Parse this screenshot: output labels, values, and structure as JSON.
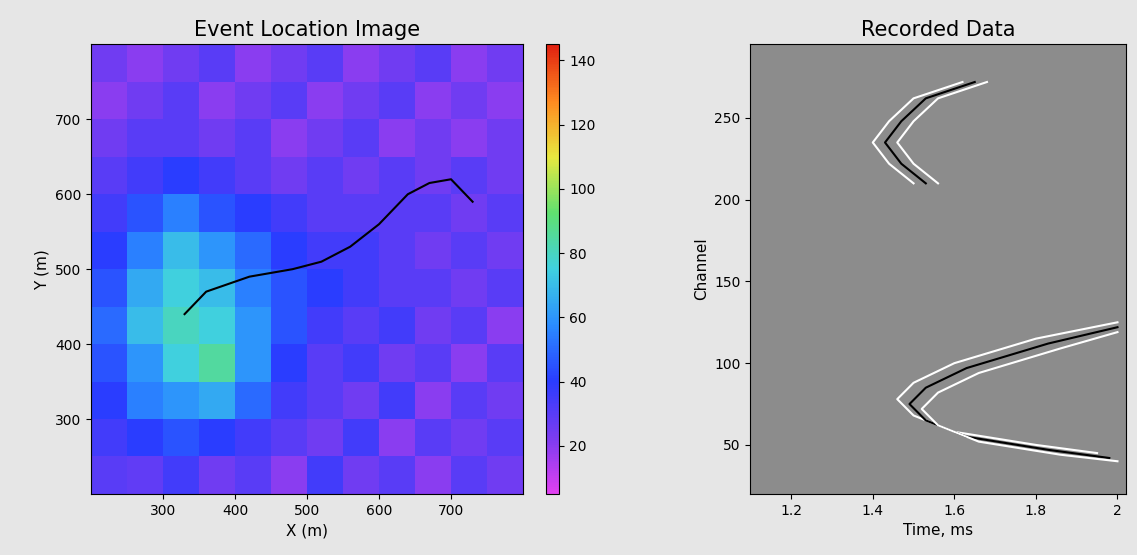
{
  "chart_data": [
    {
      "type": "heatmap",
      "title": "Event Location Image",
      "x_label": "X (m)",
      "y_label": "Y (m)",
      "x_edges": [
        200,
        250,
        300,
        350,
        400,
        450,
        500,
        550,
        600,
        650,
        700,
        750,
        800
      ],
      "y_edges": [
        200,
        250,
        300,
        350,
        400,
        450,
        500,
        550,
        600,
        650,
        700,
        750,
        800
      ],
      "cells": [
        [
          30,
          28,
          35,
          25,
          30,
          20,
          35,
          25,
          30,
          20,
          30,
          25
        ],
        [
          35,
          40,
          45,
          40,
          35,
          30,
          25,
          35,
          20,
          30,
          25,
          30
        ],
        [
          40,
          55,
          60,
          65,
          50,
          35,
          30,
          25,
          35,
          20,
          30,
          25
        ],
        [
          45,
          60,
          75,
          85,
          60,
          40,
          30,
          35,
          25,
          30,
          20,
          30
        ],
        [
          50,
          70,
          80,
          75,
          60,
          45,
          35,
          30,
          35,
          25,
          30,
          20
        ],
        [
          45,
          65,
          75,
          70,
          55,
          45,
          40,
          35,
          30,
          30,
          25,
          30
        ],
        [
          40,
          55,
          70,
          60,
          50,
          40,
          35,
          35,
          30,
          25,
          30,
          25
        ],
        [
          35,
          45,
          55,
          45,
          40,
          35,
          30,
          30,
          30,
          30,
          25,
          30
        ],
        [
          30,
          35,
          40,
          35,
          30,
          25,
          30,
          25,
          30,
          25,
          30,
          25
        ],
        [
          25,
          30,
          30,
          25,
          30,
          20,
          25,
          30,
          20,
          25,
          20,
          25
        ],
        [
          20,
          25,
          30,
          20,
          25,
          30,
          20,
          25,
          30,
          20,
          25,
          20
        ],
        [
          25,
          20,
          25,
          30,
          20,
          25,
          30,
          20,
          25,
          30,
          20,
          25
        ]
      ],
      "colorbar_range": [
        5,
        145
      ],
      "colorbar_ticks": [
        20,
        40,
        60,
        80,
        100,
        120,
        140
      ],
      "xlim": [
        200,
        800
      ],
      "ylim": [
        200,
        800
      ],
      "xticks": [
        300,
        400,
        500,
        600,
        700
      ],
      "yticks": [
        300,
        400,
        500,
        600,
        700
      ],
      "series": [
        {
          "type": "line",
          "color": "#000000",
          "x": [
            330,
            360,
            420,
            480,
            520,
            560,
            600,
            640,
            670,
            700,
            730
          ],
          "y": [
            440,
            470,
            490,
            500,
            510,
            530,
            560,
            600,
            615,
            620,
            590
          ]
        }
      ]
    },
    {
      "type": "line",
      "title": "Recorded Data",
      "x_label": "Time, ms",
      "y_label": "Channel",
      "xlim": [
        1.1,
        2.02
      ],
      "ylim": [
        20,
        295
      ],
      "xticks": [
        1.2,
        1.4,
        1.6,
        1.8,
        2
      ],
      "yticks": [
        50,
        100,
        150,
        200,
        250
      ],
      "series": [
        {
          "color": "#ffffff",
          "x": [
            1.62,
            1.5,
            1.44,
            1.4,
            1.44,
            1.5
          ],
          "y": [
            272,
            262,
            248,
            235,
            222,
            210
          ]
        },
        {
          "color": "#000000",
          "x": [
            1.65,
            1.53,
            1.47,
            1.43,
            1.47,
            1.53
          ],
          "y": [
            272,
            262,
            248,
            235,
            222,
            210
          ]
        },
        {
          "color": "#ffffff",
          "x": [
            1.68,
            1.56,
            1.5,
            1.46,
            1.5,
            1.56
          ],
          "y": [
            272,
            262,
            248,
            235,
            222,
            210
          ]
        },
        {
          "color": "#ffffff",
          "x": [
            2.0,
            1.8,
            1.6,
            1.5,
            1.46,
            1.5,
            1.6,
            1.8,
            1.95
          ],
          "y": [
            125,
            115,
            100,
            88,
            78,
            68,
            58,
            50,
            45
          ]
        },
        {
          "color": "#000000",
          "x": [
            2.0,
            1.83,
            1.63,
            1.53,
            1.49,
            1.53,
            1.63,
            1.83,
            1.98
          ],
          "y": [
            122,
            112,
            97,
            85,
            75,
            65,
            55,
            47,
            42
          ]
        },
        {
          "color": "#ffffff",
          "x": [
            2.0,
            1.86,
            1.66,
            1.56,
            1.52,
            1.56,
            1.66,
            1.86,
            2.0
          ],
          "y": [
            119,
            109,
            94,
            82,
            72,
            62,
            52,
            44,
            40
          ]
        }
      ]
    }
  ]
}
